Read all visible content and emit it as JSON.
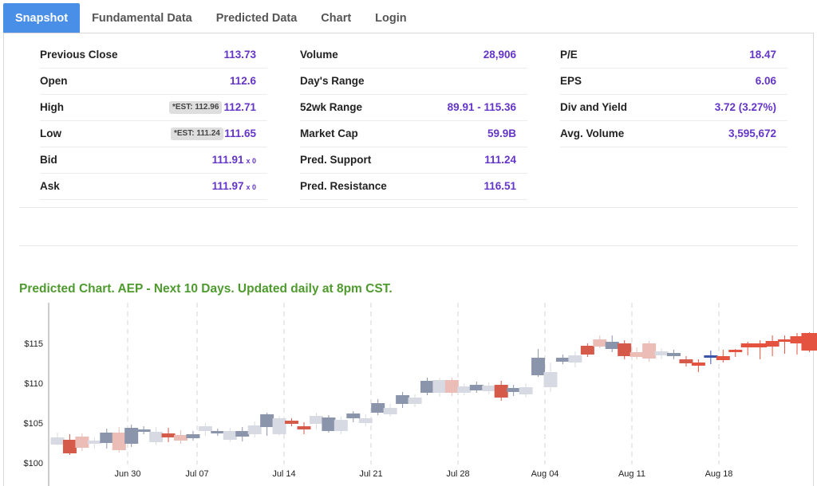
{
  "tabs": [
    "Snapshot",
    "Fundamental Data",
    "Predicted Data",
    "Chart",
    "Login"
  ],
  "stats": {
    "col1": [
      {
        "label": "Previous Close",
        "value": "113.73"
      },
      {
        "label": "Open",
        "value": "112.6"
      },
      {
        "label": "High",
        "value": "112.71",
        "est": "*EST: 112.96"
      },
      {
        "label": "Low",
        "value": "111.65",
        "est": "*EST: 111.24"
      },
      {
        "label": "Bid",
        "value": "111.91",
        "suffix": "x 0"
      },
      {
        "label": "Ask",
        "value": "111.97",
        "suffix": "x 0"
      }
    ],
    "col2": [
      {
        "label": "Volume",
        "value": "28,906"
      },
      {
        "label": "Day's Range",
        "value": ""
      },
      {
        "label": "52wk Range",
        "value": "89.91 - 115.36"
      },
      {
        "label": "Market Cap",
        "value": "59.9B"
      },
      {
        "label": "Pred. Support",
        "value": "111.24"
      },
      {
        "label": "Pred. Resistance",
        "value": "116.51"
      }
    ],
    "col3": [
      {
        "label": "P/E",
        "value": "18.47"
      },
      {
        "label": "EPS",
        "value": "6.06"
      },
      {
        "label": "Div and Yield",
        "value": "3.72 (3.27%)"
      },
      {
        "label": "Avg. Volume",
        "value": "3,595,672"
      }
    ]
  },
  "chart_title": "Predicted Chart. AEP - Next 10 Days. Updated daily at 8pm CST.",
  "chart_data": {
    "type": "candlestick",
    "title": "",
    "xlabel": "",
    "ylabel": "",
    "ylim": [
      100,
      116.5
    ],
    "y_ticks": [
      "$100",
      "$105",
      "$110",
      "$115"
    ],
    "x_ticks": [
      "Jun 30",
      "Jul 07",
      "Jul 14",
      "Jul 21",
      "Jul 28",
      "Aug 04",
      "Aug 11",
      "Aug 18"
    ],
    "grid": "vertical dashed at week starts",
    "legend": "none",
    "colors": {
      "actual_up": "#8a95ac",
      "actual_down": "#d7dae2",
      "predicted_down": "#d65a4a",
      "predicted_light": "#ecbcb6",
      "predicted_up": "#3a56a8",
      "forecast": "#e4533f"
    },
    "candles": [
      {
        "o": 103.2,
        "c": 102.3,
        "h": 103.8,
        "l": 102.2,
        "k": "actual_down"
      },
      {
        "o": 102.9,
        "c": 101.2,
        "h": 103.6,
        "l": 101.0,
        "k": "predicted_down"
      },
      {
        "o": 103.3,
        "c": 101.9,
        "h": 103.7,
        "l": 101.5,
        "k": "predicted_light"
      },
      {
        "o": 102.8,
        "c": 102.4,
        "h": 103.2,
        "l": 101.8,
        "k": "actual_down"
      },
      {
        "o": 102.5,
        "c": 103.8,
        "h": 104.3,
        "l": 101.8,
        "k": "actual_up"
      },
      {
        "o": 103.8,
        "c": 101.6,
        "h": 104.5,
        "l": 101.3,
        "k": "predicted_light"
      },
      {
        "o": 102.4,
        "c": 104.4,
        "h": 104.8,
        "l": 102.0,
        "k": "actual_up"
      },
      {
        "o": 103.9,
        "c": 104.2,
        "h": 104.6,
        "l": 103.6,
        "k": "actual_up"
      },
      {
        "o": 102.6,
        "c": 103.9,
        "h": 104.5,
        "l": 102.2,
        "k": "actual_down"
      },
      {
        "o": 103.7,
        "c": 103.2,
        "h": 104.4,
        "l": 102.6,
        "k": "predicted_down"
      },
      {
        "o": 103.5,
        "c": 102.8,
        "h": 104.1,
        "l": 102.4,
        "k": "predicted_light"
      },
      {
        "o": 103.1,
        "c": 103.6,
        "h": 104.0,
        "l": 102.8,
        "k": "actual_up"
      },
      {
        "o": 104.0,
        "c": 104.6,
        "h": 105.0,
        "l": 103.4,
        "k": "actual_down"
      },
      {
        "o": 103.7,
        "c": 104.0,
        "h": 104.3,
        "l": 103.4,
        "k": "actual_up"
      },
      {
        "o": 102.9,
        "c": 104.0,
        "h": 104.4,
        "l": 102.6,
        "k": "actual_down"
      },
      {
        "o": 103.3,
        "c": 104.0,
        "h": 104.5,
        "l": 102.7,
        "k": "actual_up"
      },
      {
        "o": 104.7,
        "c": 103.6,
        "h": 105.2,
        "l": 103.2,
        "k": "actual_down"
      },
      {
        "o": 104.5,
        "c": 106.1,
        "h": 106.3,
        "l": 103.4,
        "k": "actual_up"
      },
      {
        "o": 103.6,
        "c": 105.6,
        "h": 105.9,
        "l": 103.4,
        "k": "actual_down"
      },
      {
        "o": 105.3,
        "c": 104.9,
        "h": 105.6,
        "l": 104.6,
        "k": "predicted_down"
      },
      {
        "o": 104.6,
        "c": 104.2,
        "h": 105.1,
        "l": 103.6,
        "k": "predicted_down"
      },
      {
        "o": 104.9,
        "c": 105.9,
        "h": 106.3,
        "l": 104.2,
        "k": "actual_down"
      },
      {
        "o": 104.0,
        "c": 105.7,
        "h": 106.0,
        "l": 103.8,
        "k": "actual_up"
      },
      {
        "o": 104.0,
        "c": 105.4,
        "h": 105.8,
        "l": 103.6,
        "k": "actual_down"
      },
      {
        "o": 105.6,
        "c": 106.2,
        "h": 106.5,
        "l": 105.1,
        "k": "actual_up"
      },
      {
        "o": 105.6,
        "c": 105.0,
        "h": 106.1,
        "l": 104.6,
        "k": "actual_down"
      },
      {
        "o": 106.3,
        "c": 107.5,
        "h": 108.0,
        "l": 106.0,
        "k": "actual_up"
      },
      {
        "o": 106.1,
        "c": 106.9,
        "h": 107.4,
        "l": 105.8,
        "k": "actual_down"
      },
      {
        "o": 107.4,
        "c": 108.5,
        "h": 108.9,
        "l": 106.9,
        "k": "actual_up"
      },
      {
        "o": 107.4,
        "c": 108.2,
        "h": 108.6,
        "l": 107.0,
        "k": "actual_down"
      },
      {
        "o": 108.8,
        "c": 110.3,
        "h": 110.7,
        "l": 108.5,
        "k": "actual_up"
      },
      {
        "o": 108.8,
        "c": 110.4,
        "h": 110.7,
        "l": 108.3,
        "k": "actual_down"
      },
      {
        "o": 110.4,
        "c": 108.8,
        "h": 110.7,
        "l": 108.4,
        "k": "predicted_light"
      },
      {
        "o": 109.6,
        "c": 108.8,
        "h": 110.0,
        "l": 108.5,
        "k": "actual_down"
      },
      {
        "o": 109.1,
        "c": 109.8,
        "h": 110.2,
        "l": 108.8,
        "k": "actual_up"
      },
      {
        "o": 109.7,
        "c": 109.0,
        "h": 110.1,
        "l": 108.6,
        "k": "actual_down"
      },
      {
        "o": 109.8,
        "c": 108.2,
        "h": 110.3,
        "l": 107.8,
        "k": "predicted_down"
      },
      {
        "o": 108.9,
        "c": 109.4,
        "h": 109.8,
        "l": 108.4,
        "k": "actual_up"
      },
      {
        "o": 109.5,
        "c": 108.6,
        "h": 110.0,
        "l": 108.2,
        "k": "actual_down"
      },
      {
        "o": 111.0,
        "c": 113.2,
        "h": 114.3,
        "l": 110.8,
        "k": "actual_up"
      },
      {
        "o": 111.4,
        "c": 109.5,
        "h": 112.6,
        "l": 108.9,
        "k": "actual_down"
      },
      {
        "o": 112.7,
        "c": 113.2,
        "h": 113.6,
        "l": 112.4,
        "k": "actual_up"
      },
      {
        "o": 113.5,
        "c": 112.6,
        "h": 114.0,
        "l": 112.0,
        "k": "actual_down"
      },
      {
        "o": 113.6,
        "c": 114.7,
        "h": 115.0,
        "l": 113.3,
        "k": "predicted_down"
      },
      {
        "o": 115.5,
        "c": 114.6,
        "h": 116.0,
        "l": 114.4,
        "k": "predicted_light"
      },
      {
        "o": 114.3,
        "c": 115.2,
        "h": 116.0,
        "l": 113.9,
        "k": "actual_up"
      },
      {
        "o": 115.0,
        "c": 113.4,
        "h": 115.4,
        "l": 113.0,
        "k": "predicted_down"
      },
      {
        "o": 113.9,
        "c": 113.3,
        "h": 114.5,
        "l": 113.0,
        "k": "predicted_light"
      },
      {
        "o": 115.0,
        "c": 113.1,
        "h": 115.3,
        "l": 112.7,
        "k": "predicted_light"
      },
      {
        "o": 114.0,
        "c": 113.5,
        "h": 114.4,
        "l": 113.0,
        "k": "actual_down"
      },
      {
        "o": 113.8,
        "c": 113.4,
        "h": 114.2,
        "l": 113.0,
        "k": "actual_up"
      },
      {
        "o": 113.0,
        "c": 112.5,
        "h": 113.4,
        "l": 112.1,
        "k": "predicted_down"
      },
      {
        "o": 112.6,
        "c": 112.2,
        "h": 113.0,
        "l": 111.4,
        "k": "forecast"
      },
      {
        "o": 113.2,
        "c": 113.5,
        "h": 114.1,
        "l": 112.4,
        "k": "predicted_up"
      },
      {
        "o": 113.4,
        "c": 112.9,
        "h": 114.2,
        "l": 112.6,
        "k": "forecast"
      },
      {
        "o": 114.2,
        "c": 114.0,
        "h": 114.3,
        "l": 113.3,
        "k": "forecast"
      },
      {
        "o": 115.0,
        "c": 114.5,
        "h": 115.2,
        "l": 113.5,
        "k": "forecast"
      },
      {
        "o": 115.0,
        "c": 114.5,
        "h": 115.4,
        "l": 113.0,
        "k": "forecast"
      },
      {
        "o": 115.3,
        "c": 114.6,
        "h": 116.0,
        "l": 113.4,
        "k": "forecast"
      },
      {
        "o": 115.5,
        "c": 115.3,
        "h": 116.0,
        "l": 113.7,
        "k": "forecast"
      },
      {
        "o": 115.9,
        "c": 115.0,
        "h": 116.3,
        "l": 113.6,
        "k": "forecast"
      },
      {
        "o": 116.3,
        "c": 114.1,
        "h": 116.4,
        "l": 113.9,
        "k": "forecast"
      }
    ]
  }
}
